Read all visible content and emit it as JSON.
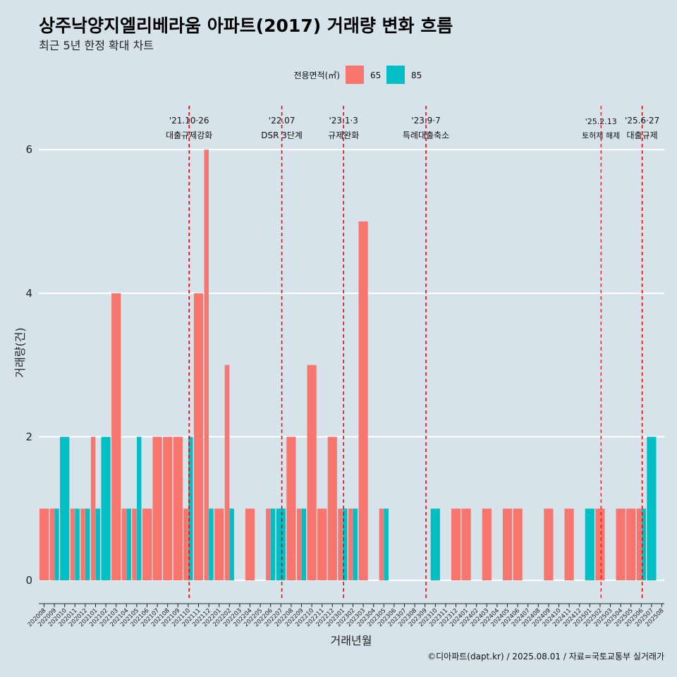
{
  "chart_data": {
    "type": "bar",
    "title": "상주낙양지엘리베라움 아파트(2017) 거래량 변화 흐름",
    "subtitle": "최근 5년 한정 확대 차트",
    "xlabel": "거래년월",
    "ylabel": "거래량(건)",
    "caption": "©디아파트(dapt.kr) / 2025.08.01 / 자료=국토교통부 실거래가",
    "legend": {
      "title": "전용면적(㎡)",
      "position": "top"
    },
    "ylim": [
      0,
      6.6
    ],
    "yticks": [
      0,
      2,
      4,
      6
    ],
    "grid": true,
    "categories": [
      "202008",
      "202009",
      "202010",
      "202011",
      "202012",
      "202101",
      "202102",
      "202103",
      "202104",
      "202105",
      "202106",
      "202107",
      "202108",
      "202109",
      "202110",
      "202111",
      "202112",
      "202201",
      "202202",
      "202203",
      "202204",
      "202205",
      "202206",
      "202207",
      "202208",
      "202209",
      "202210",
      "202211",
      "202212",
      "202301",
      "202302",
      "202303",
      "202304",
      "202305",
      "202306",
      "202307",
      "202308",
      "202309",
      "202310",
      "202311",
      "202312",
      "202401",
      "202402",
      "202403",
      "202404",
      "202405",
      "202406",
      "202407",
      "202408",
      "202409",
      "202410",
      "202411",
      "202412",
      "202501",
      "202502",
      "202503",
      "202504",
      "202505",
      "202506",
      "202507",
      "202508"
    ],
    "series": [
      {
        "name": "65",
        "color": "#f8766d",
        "values": [
          1,
          1,
          0,
          1,
          1,
          2,
          0,
          4,
          1,
          1,
          1,
          2,
          2,
          2,
          1,
          4,
          6,
          1,
          3,
          0,
          1,
          0,
          1,
          0,
          2,
          1,
          3,
          1,
          2,
          1,
          1,
          5,
          0,
          1,
          0,
          0,
          0,
          0,
          0,
          0,
          1,
          1,
          0,
          1,
          0,
          1,
          1,
          0,
          0,
          1,
          0,
          1,
          0,
          0,
          1,
          0,
          1,
          1,
          1,
          0,
          0
        ]
      },
      {
        "name": "85",
        "color": "#00bfc4",
        "values": [
          0,
          1,
          2,
          1,
          1,
          1,
          2,
          0,
          1,
          2,
          0,
          0,
          0,
          0,
          2,
          0,
          1,
          0,
          1,
          0,
          0,
          0,
          1,
          1,
          0,
          1,
          0,
          0,
          0,
          1,
          1,
          0,
          0,
          1,
          0,
          0,
          0,
          0,
          1,
          0,
          0,
          0,
          0,
          0,
          0,
          0,
          0,
          0,
          0,
          0,
          0,
          0,
          0,
          1,
          0,
          0,
          0,
          0,
          1,
          2,
          0
        ]
      }
    ],
    "annotations": [
      {
        "month": "202110",
        "date": "'21.10·26",
        "label": "대출규제강화",
        "small": false
      },
      {
        "month": "202207",
        "date": "'22.07",
        "label": "DSR 3단계",
        "small": false
      },
      {
        "month": "202301",
        "date": "'23.1·3",
        "label": "규제완화",
        "small": false
      },
      {
        "month": "202309",
        "date": "'23.9·7",
        "label": "특례대출축소",
        "small": false
      },
      {
        "month": "202502",
        "date": "'25.2.13",
        "label": "토허제 해제",
        "small": true
      },
      {
        "month": "202506",
        "date": "'25.6·27",
        "label": "대출규제",
        "small": false
      }
    ],
    "annotation_color": "#ff0000"
  }
}
